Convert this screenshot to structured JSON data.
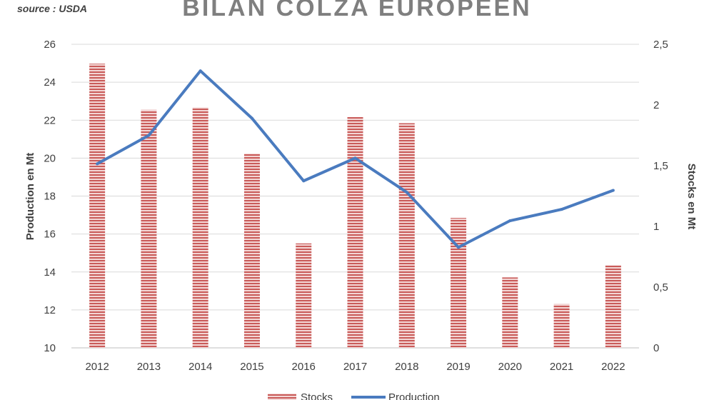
{
  "source": "source : USDA",
  "chart_data": {
    "type": "bar",
    "title": "BILAN COLZA EUROPEEN",
    "categories": [
      "2012",
      "2013",
      "2014",
      "2015",
      "2016",
      "2017",
      "2018",
      "2019",
      "2020",
      "2021",
      "2022"
    ],
    "ylabel_left": "Production en Mt",
    "ylabel_right": "Stocks en Mt",
    "ylim_left": [
      10,
      26
    ],
    "ylim_right": [
      0,
      2.5
    ],
    "yticks_left": [
      "10",
      "12",
      "14",
      "16",
      "18",
      "20",
      "22",
      "24",
      "26"
    ],
    "yticks_right": [
      "0",
      "0,5",
      "1",
      "1,5",
      "2",
      "2,5"
    ],
    "grid": true,
    "legend_position": "bottom",
    "series": [
      {
        "name": "Stocks",
        "type": "bar",
        "axis": "right",
        "color": "#c0504d",
        "values": [
          2.34,
          1.96,
          1.98,
          1.6,
          0.86,
          1.9,
          1.85,
          1.07,
          0.58,
          0.36,
          0.68
        ]
      },
      {
        "name": "Production",
        "type": "line",
        "axis": "left",
        "color": "#4a7bbf",
        "values": [
          19.7,
          21.2,
          24.6,
          22.1,
          18.8,
          20.0,
          18.2,
          15.3,
          16.7,
          17.3,
          18.3
        ]
      }
    ]
  }
}
